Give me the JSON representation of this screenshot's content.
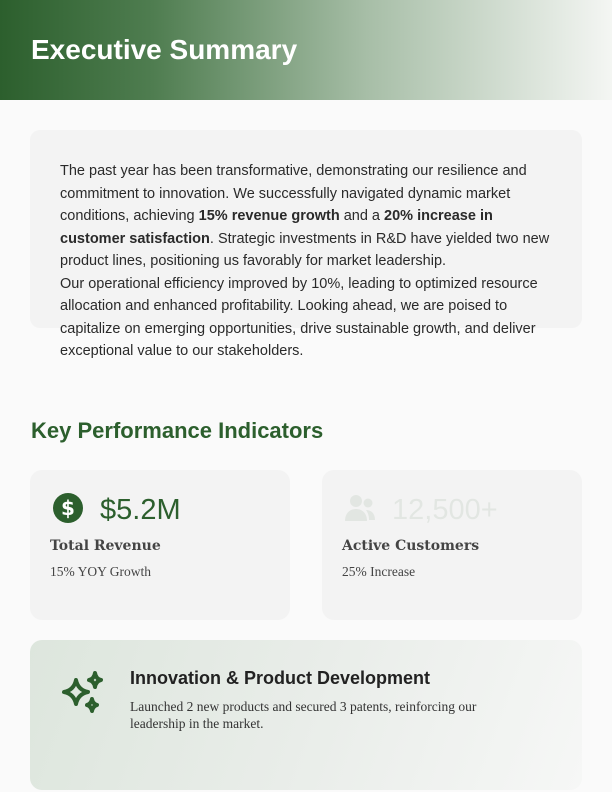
{
  "header": {
    "title": "Executive Summary"
  },
  "summary": {
    "p1_a": "The past year has been transformative, demonstrating our resilience and commitment to innovation. We successfully navigated dynamic market conditions, achieving ",
    "p1_b1": "15% revenue growth",
    "p1_c": " and a ",
    "p1_b2": "20% increase in customer satisfaction",
    "p1_d": ". Strategic investments in R&D have yielded two new product lines, positioning us favorably for market leadership.",
    "p2": "Our operational efficiency improved by 10%, leading to optimized resource allocation and enhanced profitability. Looking ahead, we are poised to capitalize on emerging opportunities, drive sustainable growth, and deliver exceptional value to our stakeholders."
  },
  "kpi": {
    "title": "Key Performance Indicators",
    "cards": [
      {
        "icon": "dollar-circle-icon",
        "value": "$5.2M",
        "label": "Total Revenue",
        "sub": "15% YOY Growth"
      },
      {
        "icon": "users-icon",
        "value": "12,500+",
        "label": "Active Customers",
        "sub": "25% Increase"
      }
    ]
  },
  "innovation": {
    "icon": "sparkles-icon",
    "title": "Innovation & Product Development",
    "text": "Launched 2 new products and secured 3 patents, reinforcing our leadership in the market."
  },
  "colors": {
    "brand": "#2c5f2d"
  }
}
